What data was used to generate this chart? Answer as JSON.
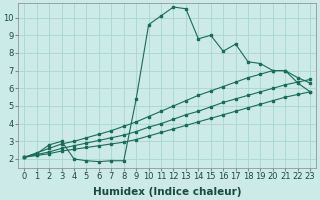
{
  "bg_color": "#cceae8",
  "line_color": "#1a6b5a",
  "grid_color": "#aad4d0",
  "xlabel": "Humidex (Indice chaleur)",
  "xlabel_fontsize": 7.5,
  "tick_fontsize": 6,
  "xlim": [
    -0.5,
    23.5
  ],
  "ylim": [
    1.5,
    10.8
  ],
  "xticks": [
    0,
    1,
    2,
    3,
    4,
    5,
    6,
    7,
    8,
    9,
    10,
    11,
    12,
    13,
    14,
    15,
    16,
    17,
    18,
    19,
    20,
    21,
    22,
    23
  ],
  "yticks": [
    2,
    3,
    4,
    5,
    6,
    7,
    8,
    9,
    10
  ],
  "curve1_x": [
    0,
    1,
    2,
    3,
    4,
    5,
    6,
    7,
    8,
    9,
    10,
    11,
    12,
    13,
    14,
    15,
    16,
    17,
    18,
    19,
    20,
    21,
    22,
    23
  ],
  "curve1_y": [
    2.1,
    2.3,
    2.8,
    3.0,
    2.0,
    1.9,
    1.85,
    1.9,
    1.9,
    5.4,
    9.6,
    10.1,
    10.6,
    10.5,
    8.8,
    9.0,
    8.1,
    8.5,
    7.5,
    7.4,
    7.0,
    7.0,
    6.3,
    5.8
  ],
  "curve2_x": [
    0,
    1,
    2,
    3,
    4,
    5,
    6,
    7,
    8,
    9,
    10,
    11,
    12,
    13,
    14,
    15,
    16,
    17,
    18,
    19,
    20,
    21,
    22,
    23
  ],
  "curve2_y": [
    2.1,
    2.2,
    2.3,
    2.45,
    2.55,
    2.65,
    2.75,
    2.85,
    2.95,
    3.1,
    3.3,
    3.5,
    3.7,
    3.9,
    4.1,
    4.3,
    4.5,
    4.7,
    4.9,
    5.1,
    5.3,
    5.5,
    5.65,
    5.8
  ],
  "curve3_x": [
    0,
    1,
    2,
    3,
    4,
    5,
    6,
    7,
    8,
    9,
    10,
    11,
    12,
    13,
    14,
    15,
    16,
    17,
    18,
    19,
    20,
    21,
    22,
    23
  ],
  "curve3_y": [
    2.1,
    2.35,
    2.6,
    2.85,
    3.0,
    3.2,
    3.4,
    3.6,
    3.85,
    4.1,
    4.4,
    4.7,
    5.0,
    5.3,
    5.6,
    5.85,
    6.1,
    6.35,
    6.6,
    6.8,
    7.0,
    7.0,
    6.6,
    6.3
  ],
  "curve4_x": [
    0,
    1,
    2,
    3,
    4,
    5,
    6,
    7,
    8,
    9,
    10,
    11,
    12,
    13,
    14,
    15,
    16,
    17,
    18,
    19,
    20,
    21,
    22,
    23
  ],
  "curve4_y": [
    2.1,
    2.25,
    2.4,
    2.6,
    2.75,
    2.9,
    3.05,
    3.2,
    3.35,
    3.55,
    3.8,
    4.0,
    4.25,
    4.5,
    4.7,
    4.95,
    5.2,
    5.4,
    5.6,
    5.8,
    6.0,
    6.2,
    6.35,
    6.5
  ],
  "figsize": [
    3.2,
    2.0
  ],
  "dpi": 100
}
